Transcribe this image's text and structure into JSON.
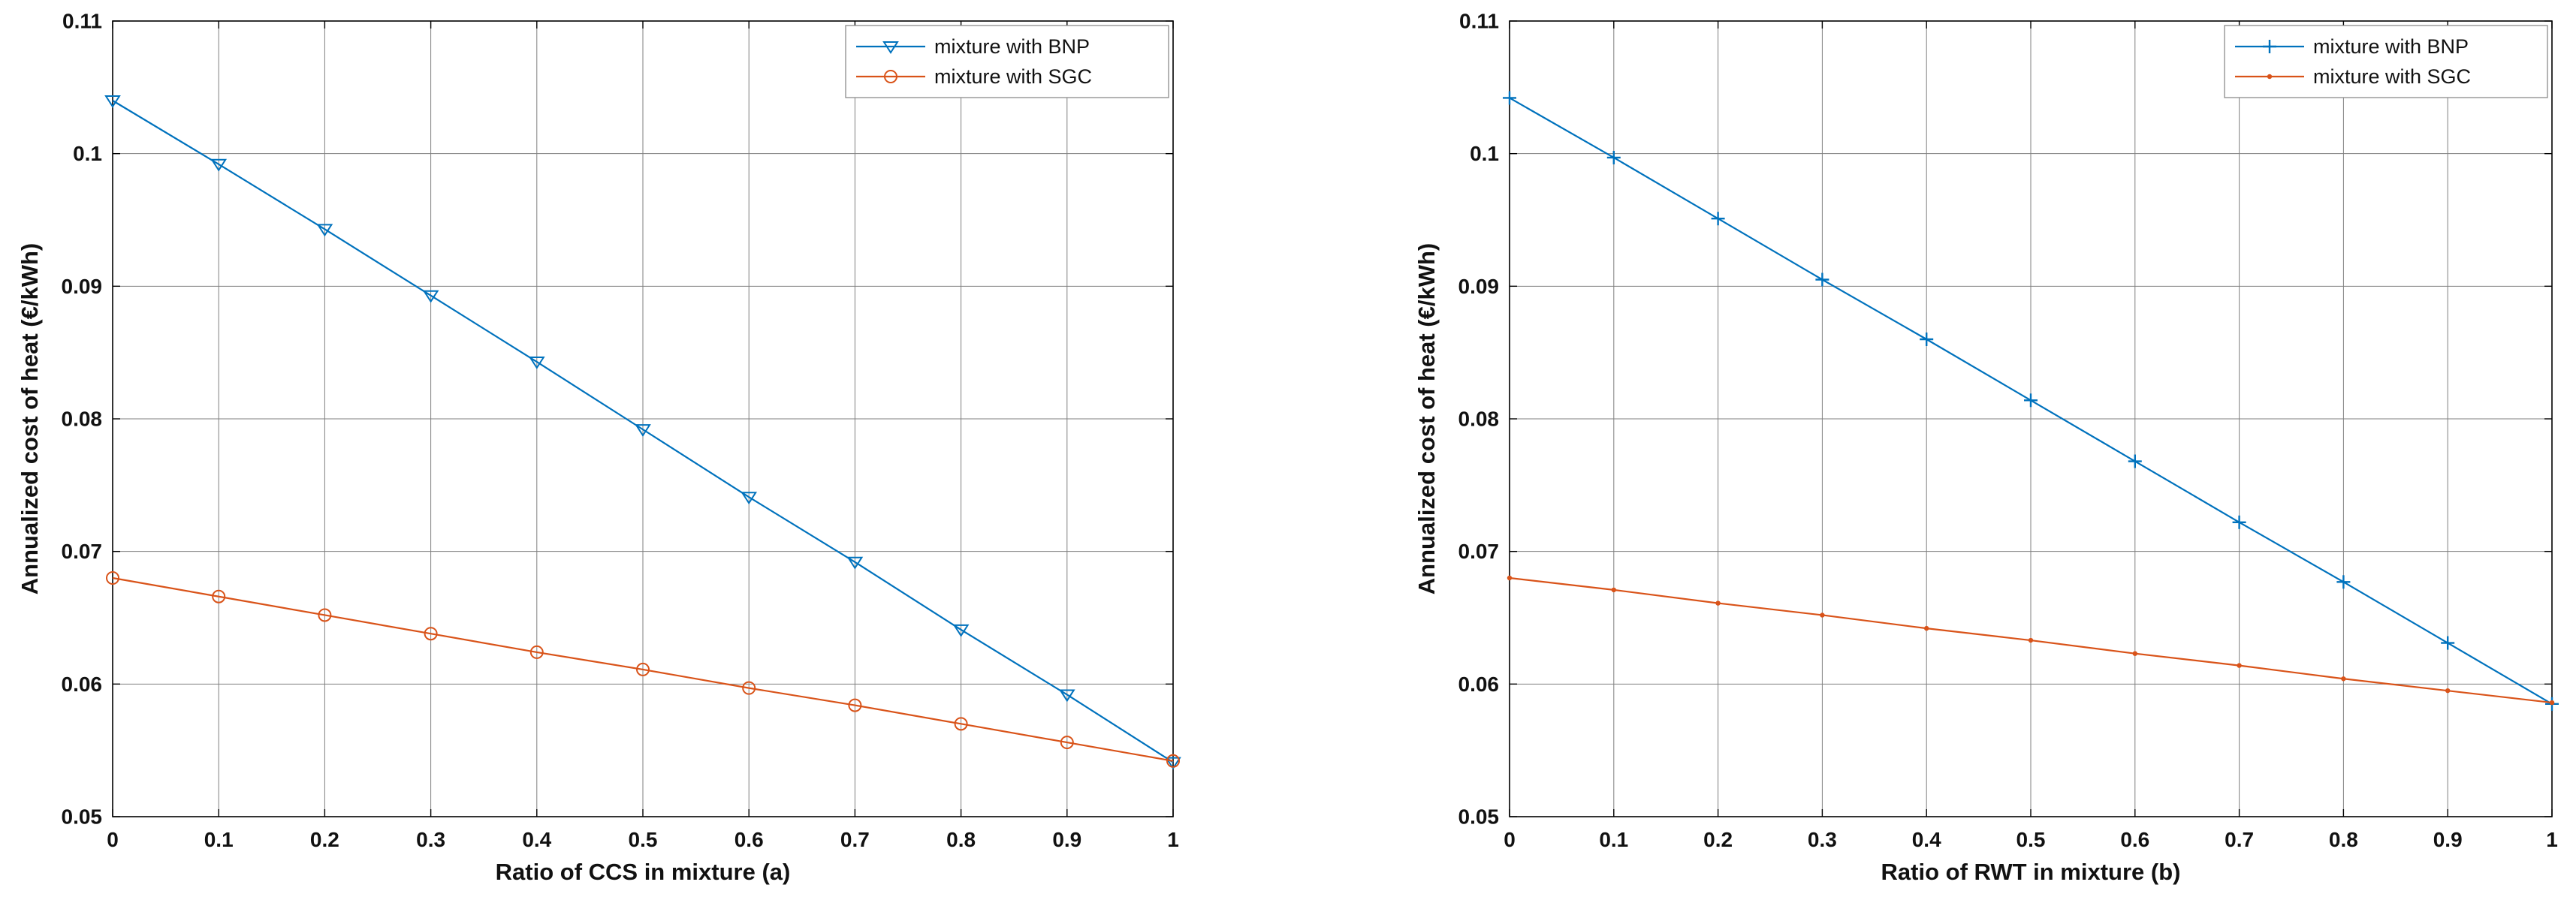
{
  "page": {
    "background": "#ffffff"
  },
  "colors": {
    "bnp": "#0072BD",
    "sgc": "#D95319",
    "grid": "#7f7f7f",
    "axis": "#000000",
    "legend_border": "#8c8c8c",
    "legend_bg": "#ffffff"
  },
  "chart_data": [
    {
      "id": "chart-a",
      "type": "line",
      "title": "",
      "xlabel": "Ratio of CCS in mixture (a)",
      "ylabel": "Annualized cost of heat (€/kWh)",
      "xlim": [
        0,
        1
      ],
      "ylim": [
        0.05,
        0.11
      ],
      "grid": true,
      "legend_position": "top-right",
      "xticks": [
        0,
        0.1,
        0.2,
        0.3,
        0.4,
        0.5,
        0.6,
        0.7,
        0.8,
        0.9,
        1
      ],
      "xtick_labels": [
        "0",
        "0.1",
        "0.2",
        "0.3",
        "0.4",
        "0.5",
        "0.6",
        "0.7",
        "0.8",
        "0.9",
        "1"
      ],
      "yticks": [
        0.05,
        0.06,
        0.07,
        0.08,
        0.09,
        0.1,
        0.11
      ],
      "ytick_labels": [
        "0.05",
        "0.06",
        "0.07",
        "0.08",
        "0.09",
        "0.1",
        "0.11"
      ],
      "x": [
        0,
        0.1,
        0.2,
        0.3,
        0.4,
        0.5,
        0.6,
        0.7,
        0.8,
        0.9,
        1
      ],
      "series": [
        {
          "name": "mixture with BNP",
          "color": "#0072BD",
          "marker": "triangle-down",
          "values": [
            0.104,
            0.0992,
            0.0943,
            0.0893,
            0.0843,
            0.0792,
            0.0741,
            0.0692,
            0.0641,
            0.0592,
            0.0541
          ]
        },
        {
          "name": "mixture with SGC",
          "color": "#D95319",
          "marker": "circle",
          "values": [
            0.068,
            0.0666,
            0.0652,
            0.0638,
            0.0624,
            0.0611,
            0.0597,
            0.0584,
            0.057,
            0.0556,
            0.0542
          ]
        }
      ]
    },
    {
      "id": "chart-b",
      "type": "line",
      "title": "",
      "xlabel": "Ratio of RWT in mixture (b)",
      "ylabel": "Annualized cost of heat (€/kWh)",
      "xlim": [
        0,
        1
      ],
      "ylim": [
        0.05,
        0.11
      ],
      "grid": true,
      "legend_position": "top-right",
      "xticks": [
        0,
        0.1,
        0.2,
        0.3,
        0.4,
        0.5,
        0.6,
        0.7,
        0.8,
        0.9,
        1
      ],
      "xtick_labels": [
        "0",
        "0.1",
        "0.2",
        "0.3",
        "0.4",
        "0.5",
        "0.6",
        "0.7",
        "0.8",
        "0.9",
        "1"
      ],
      "yticks": [
        0.05,
        0.06,
        0.07,
        0.08,
        0.09,
        0.1,
        0.11
      ],
      "ytick_labels": [
        "0.05",
        "0.06",
        "0.07",
        "0.08",
        "0.09",
        "0.1",
        "0.11"
      ],
      "x": [
        0,
        0.1,
        0.2,
        0.3,
        0.4,
        0.5,
        0.6,
        0.7,
        0.8,
        0.9,
        1
      ],
      "series": [
        {
          "name": "mixture with BNP",
          "color": "#0072BD",
          "marker": "plus",
          "values": [
            0.1042,
            0.0997,
            0.0951,
            0.0905,
            0.086,
            0.0814,
            0.0768,
            0.0722,
            0.0677,
            0.0631,
            0.0585
          ]
        },
        {
          "name": "mixture with SGC",
          "color": "#D95319",
          "marker": "dot",
          "values": [
            0.068,
            0.0671,
            0.0661,
            0.0652,
            0.0642,
            0.0633,
            0.0623,
            0.0614,
            0.0604,
            0.0595,
            0.0586
          ]
        }
      ]
    }
  ]
}
